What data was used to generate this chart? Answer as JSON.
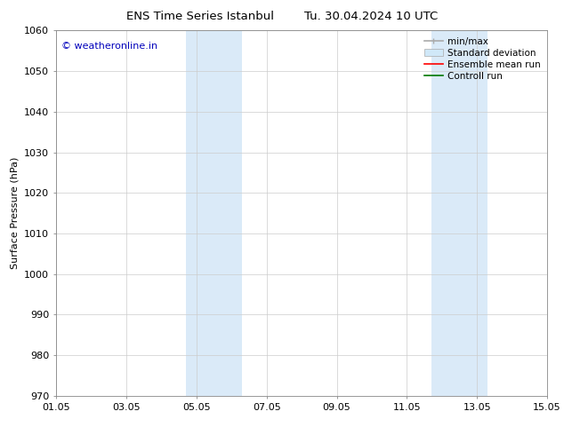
{
  "title_left": "ENS Time Series Istanbul",
  "title_right": "Tu. 30.04.2024 10 UTC",
  "ylabel": "Surface Pressure (hPa)",
  "ylim": [
    970,
    1060
  ],
  "yticks": [
    970,
    980,
    990,
    1000,
    1010,
    1020,
    1030,
    1040,
    1050,
    1060
  ],
  "xtick_labels": [
    "01.05",
    "03.05",
    "05.05",
    "07.05",
    "09.05",
    "11.05",
    "13.05",
    "15.05"
  ],
  "xtick_positions": [
    0,
    2,
    4,
    6,
    8,
    10,
    12,
    14
  ],
  "xlim": [
    0,
    14
  ],
  "shaded_regions": [
    {
      "xmin": 3.7,
      "xmax": 5.3
    },
    {
      "xmin": 10.7,
      "xmax": 12.3
    }
  ],
  "shaded_color": "#daeaf8",
  "background_color": "#ffffff",
  "watermark_text": "© weatheronline.in",
  "watermark_color": "#0000bb",
  "legend_entries": [
    {
      "label": "min/max",
      "color": "#aaaaaa",
      "lw": 1.2
    },
    {
      "label": "Standard deviation",
      "color": "#d0e8f8",
      "lw": 7
    },
    {
      "label": "Ensemble mean run",
      "color": "#ff0000",
      "lw": 1.2
    },
    {
      "label": "Controll run",
      "color": "#007700",
      "lw": 1.2
    }
  ],
  "grid_color": "#cccccc",
  "title_fontsize": 9.5,
  "axis_label_fontsize": 8,
  "tick_fontsize": 8,
  "legend_fontsize": 7.5,
  "watermark_fontsize": 8
}
